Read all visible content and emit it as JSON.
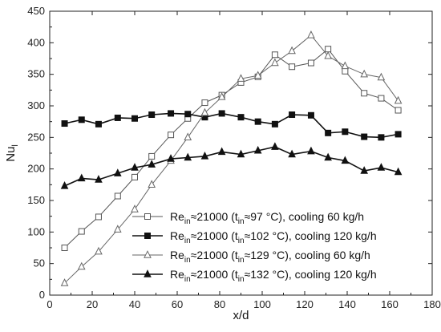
{
  "chart_data": {
    "type": "line",
    "xlabel": "x/d",
    "ylabel_main": "Nu",
    "ylabel_sub": "l",
    "xlim": [
      0,
      180
    ],
    "ylim": [
      0,
      450
    ],
    "x_ticks": [
      0,
      20,
      40,
      60,
      80,
      100,
      120,
      140,
      160,
      180
    ],
    "y_ticks": [
      0,
      50,
      100,
      150,
      200,
      250,
      300,
      350,
      400,
      450
    ],
    "grid": false,
    "legend_position": "bottom-right",
    "series": [
      {
        "legend_parts": [
          "Re",
          "in",
          "≈21000 (t",
          "in",
          "≈97 °C), cooling 60 kg/h"
        ],
        "marker": "open-square",
        "color": "#555555",
        "x": [
          7,
          15,
          23,
          32,
          40,
          48,
          57,
          65,
          73,
          81,
          90,
          98,
          106,
          114,
          123,
          131,
          139,
          148,
          156,
          164
        ],
        "y": [
          75,
          101,
          124,
          157,
          187,
          220,
          254,
          280,
          305,
          317,
          337,
          346,
          381,
          362,
          368,
          390,
          355,
          320,
          312,
          293
        ]
      },
      {
        "legend_parts": [
          "Re",
          "in",
          "≈21000 (t",
          "in",
          "≈102 °C), cooling 120 kg/h"
        ],
        "marker": "filled-square",
        "color": "#111111",
        "x": [
          7,
          15,
          23,
          32,
          40,
          48,
          57,
          65,
          73,
          81,
          90,
          98,
          106,
          114,
          123,
          131,
          139,
          148,
          156,
          164
        ],
        "y": [
          272,
          278,
          271,
          281,
          280,
          286,
          288,
          287,
          282,
          288,
          282,
          275,
          271,
          286,
          285,
          257,
          259,
          251,
          250,
          255
        ]
      },
      {
        "legend_parts": [
          "Re",
          "in",
          "≈21000 (t",
          "in",
          "≈129 °C), cooling 60 kg/h"
        ],
        "marker": "open-triangle",
        "color": "#666666",
        "x": [
          7,
          15,
          23,
          32,
          40,
          48,
          57,
          65,
          73,
          81,
          90,
          98,
          106,
          114,
          123,
          131,
          139,
          148,
          156,
          164
        ],
        "y": [
          19,
          45,
          69,
          104,
          136,
          175,
          213,
          250,
          289,
          314,
          343,
          348,
          368,
          387,
          412,
          379,
          363,
          350,
          345,
          308
        ]
      },
      {
        "legend_parts": [
          "Re",
          "in",
          "≈21000 (t",
          "in",
          "≈132 °C), cooling 120 kg/h"
        ],
        "marker": "filled-triangle",
        "color": "#111111",
        "x": [
          7,
          15,
          23,
          32,
          40,
          48,
          57,
          65,
          73,
          81,
          90,
          98,
          106,
          114,
          123,
          131,
          139,
          148,
          156,
          164
        ],
        "y": [
          173,
          185,
          183,
          193,
          202,
          207,
          216,
          218,
          220,
          227,
          223,
          229,
          235,
          223,
          228,
          218,
          213,
          197,
          202,
          195
        ]
      }
    ]
  }
}
